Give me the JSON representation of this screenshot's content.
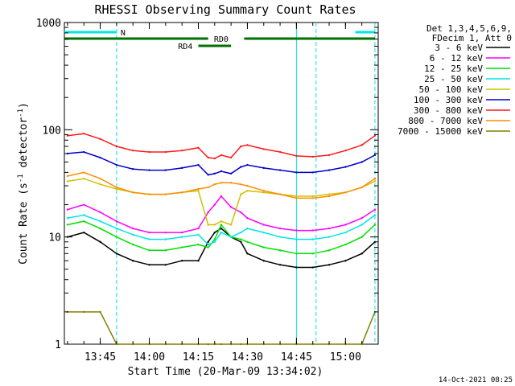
{
  "chart_data": {
    "type": "line",
    "title": "RHESSI Observing Summary Count Rates",
    "xlabel": "Start Time (20-Mar-09 13:34:02)",
    "ylabel": "Count Rate (s⁻¹ detector⁻¹)",
    "ylabel_main": "Count Rate (s",
    "ylabel_sup1": "-1",
    "ylabel_mid": " detector",
    "ylabel_sup2": "-1",
    "ylabel_end": ")",
    "y_scale": "log",
    "ylim": [
      1,
      1000
    ],
    "xlim": [
      "13:34:02",
      "15:10:00"
    ],
    "x_ticks": [
      "13:45",
      "14:00",
      "14:15",
      "14:30",
      "14:45",
      "15:00"
    ],
    "y_ticks": [
      "1",
      "10",
      "100",
      "1000"
    ],
    "legend_header": [
      "Det 1,3,4,5,6,9,",
      "FDecim 1, Att 0"
    ],
    "legend_placement": "right",
    "footer_date": "14-Oct-2021 08:25",
    "markers": [
      {
        "label": "N",
        "color": "#00e5e5",
        "segments": [
          [
            "13:34",
            "13:50"
          ],
          [
            "15:03",
            "15:09"
          ]
        ]
      },
      {
        "label": "RD0",
        "color": "#007000",
        "segments": [
          [
            "13:34",
            "14:18"
          ],
          [
            "14:29",
            "15:09"
          ]
        ]
      },
      {
        "label": "RD4",
        "color": "#007000",
        "segments": [
          [
            "14:15",
            "14:25"
          ]
        ]
      }
    ],
    "vlines": [
      {
        "time": "13:50",
        "color": "#00e5e5",
        "style": "dashed"
      },
      {
        "time": "14:45",
        "color": "#00e5e5",
        "style": "solid"
      },
      {
        "time": "14:51",
        "color": "#00e5e5",
        "style": "dashed"
      },
      {
        "time": "15:09",
        "color": "#00e5e5",
        "style": "dashed"
      }
    ],
    "x": [
      "13:35",
      "13:40",
      "13:45",
      "13:50",
      "13:55",
      "14:00",
      "14:05",
      "14:10",
      "14:15",
      "14:18",
      "14:20",
      "14:22",
      "14:25",
      "14:28",
      "14:30",
      "14:35",
      "14:40",
      "14:45",
      "14:50",
      "14:55",
      "15:00",
      "15:05",
      "15:09"
    ],
    "series": [
      {
        "name": "3 - 6 keV",
        "color": "#000000",
        "values": [
          10,
          11,
          9,
          7,
          6,
          5.5,
          5.5,
          6,
          6,
          9,
          11,
          12,
          10,
          9,
          7,
          6,
          5.5,
          5.2,
          5.2,
          5.5,
          6,
          7,
          9
        ]
      },
      {
        "name": "6 - 12 keV",
        "color": "#ff00ff",
        "values": [
          18,
          20,
          17,
          14,
          12,
          11,
          11,
          11,
          12,
          17,
          20,
          24,
          19,
          17,
          15,
          13,
          12,
          11.5,
          11.5,
          12,
          13,
          15,
          18
        ]
      },
      {
        "name": "12 - 25 keV",
        "color": "#00e000",
        "values": [
          13,
          14,
          12,
          10,
          8.5,
          7.5,
          7.5,
          8,
          8.5,
          8,
          9.5,
          13,
          10,
          9.5,
          9,
          8,
          7.5,
          7,
          7,
          7.5,
          8.5,
          10,
          13
        ]
      },
      {
        "name": "25 - 50 keV",
        "color": "#00e5e5",
        "values": [
          15,
          16,
          14,
          12,
          10.5,
          9.5,
          9.5,
          10,
          10.5,
          8.5,
          9,
          11,
          10,
          11,
          12,
          11,
          10,
          9.5,
          9.5,
          10,
          11,
          13,
          16
        ]
      },
      {
        "name": "50 - 100 keV",
        "color": "#d0c000",
        "values": [
          33,
          35,
          31,
          28,
          26,
          25,
          25,
          26,
          27,
          13,
          13,
          14,
          13,
          25,
          27,
          26,
          25,
          24,
          24,
          25,
          26,
          29,
          33
        ]
      },
      {
        "name": "100 - 300 keV",
        "color": "#0000cc",
        "values": [
          60,
          62,
          55,
          47,
          43,
          42,
          42,
          44,
          47,
          38,
          39,
          41,
          39,
          45,
          47,
          44,
          42,
          40,
          40,
          42,
          45,
          50,
          58
        ]
      },
      {
        "name": "300 - 800 keV",
        "color": "#ff1a1a",
        "values": [
          88,
          92,
          82,
          70,
          64,
          62,
          62,
          64,
          68,
          55,
          54,
          58,
          55,
          70,
          72,
          66,
          62,
          57,
          56,
          58,
          64,
          72,
          88
        ]
      },
      {
        "name": "800 - 7000 keV",
        "color": "#ff8c00",
        "values": [
          37,
          40,
          35,
          29,
          26,
          25,
          25,
          26,
          28,
          29,
          31,
          32,
          32,
          31,
          30,
          27,
          25,
          23,
          23,
          24,
          26,
          29,
          35
        ]
      },
      {
        "name": "7000 - 15000 keV",
        "color": "#808000",
        "values": [
          2,
          2,
          2,
          1,
          1,
          1,
          1,
          1,
          1,
          1,
          1,
          1,
          1,
          1,
          1,
          1,
          1,
          1,
          1,
          1,
          1,
          1,
          2
        ]
      }
    ]
  }
}
